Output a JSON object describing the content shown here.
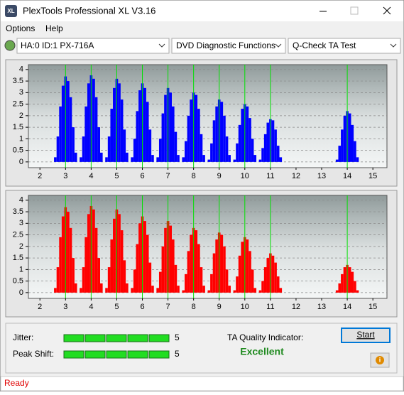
{
  "window": {
    "title": "PlexTools Professional XL V3.16"
  },
  "menu": [
    "Options",
    "Help"
  ],
  "toolbar": {
    "drive": "HA:0 ID:1  PX-716A",
    "function": "DVD Diagnostic Functions",
    "test": "Q-Check TA Test"
  },
  "chart_data": [
    {
      "type": "bar",
      "color": "#0000ff",
      "grid": true,
      "x": [
        2.6,
        2.7,
        2.8,
        2.9,
        3,
        3.1,
        3.2,
        3.3,
        3.4,
        3.6,
        3.7,
        3.8,
        3.9,
        4,
        4.1,
        4.2,
        4.3,
        4.4,
        4.6,
        4.7,
        4.8,
        4.9,
        5,
        5.1,
        5.2,
        5.3,
        5.4,
        5.6,
        5.7,
        5.8,
        5.9,
        6,
        6.1,
        6.2,
        6.3,
        6.4,
        6.6,
        6.7,
        6.8,
        6.9,
        7,
        7.1,
        7.2,
        7.3,
        7.4,
        7.6,
        7.7,
        7.8,
        7.9,
        8,
        8.1,
        8.2,
        8.3,
        8.4,
        8.6,
        8.7,
        8.8,
        8.9,
        9,
        9.1,
        9.2,
        9.3,
        9.4,
        9.6,
        9.7,
        9.8,
        9.9,
        10,
        10.1,
        10.2,
        10.3,
        10.4,
        10.6,
        10.7,
        10.8,
        10.9,
        11,
        11.1,
        11.2,
        11.3,
        11.4,
        13.6,
        13.7,
        13.8,
        13.9,
        14,
        14.1,
        14.2,
        14.3,
        14.4
      ],
      "values": [
        0.2,
        1.1,
        2.4,
        3.3,
        3.7,
        3.5,
        2.8,
        1.5,
        0.4,
        0.2,
        1.1,
        2.4,
        3.4,
        3.75,
        3.6,
        2.8,
        1.5,
        0.4,
        0.2,
        1.1,
        2.3,
        3.2,
        3.6,
        3.4,
        2.7,
        1.4,
        0.4,
        0.2,
        1.0,
        2.2,
        3.1,
        3.4,
        3.2,
        2.6,
        1.4,
        0.3,
        0.2,
        1.0,
        2.1,
        2.9,
        3.2,
        3.0,
        2.4,
        1.3,
        0.3,
        0.2,
        0.9,
        2.0,
        2.7,
        3.0,
        2.9,
        2.3,
        1.2,
        0.3,
        0.1,
        0.8,
        1.8,
        2.4,
        2.7,
        2.6,
        2.0,
        1.1,
        0.3,
        0.1,
        0.8,
        1.6,
        2.3,
        2.5,
        2.4,
        1.9,
        1.0,
        0.3,
        0.1,
        0.6,
        1.2,
        1.7,
        1.85,
        1.8,
        1.4,
        0.7,
        0.2,
        0.1,
        0.7,
        1.4,
        2.0,
        2.2,
        2.1,
        1.6,
        0.9,
        0.2
      ],
      "xlim": [
        1.55,
        15.55
      ],
      "ylim": [
        -0.25,
        4.21
      ],
      "xticks": [
        2,
        3,
        4,
        5,
        6,
        7,
        8,
        9,
        10,
        11,
        12,
        13,
        14,
        15
      ],
      "yticks": [
        0,
        0.5,
        1,
        1.5,
        2,
        2.5,
        3,
        3.5,
        4
      ],
      "reference_lines": [
        3,
        4,
        5,
        6,
        7,
        8,
        9,
        10,
        11,
        14
      ],
      "reference_color": "#00e000"
    },
    {
      "type": "bar",
      "color": "#ff0000",
      "grid": true,
      "x": [
        2.6,
        2.7,
        2.8,
        2.9,
        3,
        3.1,
        3.2,
        3.3,
        3.4,
        3.6,
        3.7,
        3.8,
        3.9,
        4,
        4.1,
        4.2,
        4.3,
        4.4,
        4.6,
        4.7,
        4.8,
        4.9,
        5,
        5.1,
        5.2,
        5.3,
        5.4,
        5.6,
        5.7,
        5.8,
        5.9,
        6,
        6.1,
        6.2,
        6.3,
        6.4,
        6.6,
        6.7,
        6.8,
        6.9,
        7,
        7.1,
        7.2,
        7.3,
        7.4,
        7.6,
        7.7,
        7.8,
        7.9,
        8,
        8.1,
        8.2,
        8.3,
        8.4,
        8.6,
        8.7,
        8.8,
        8.9,
        9,
        9.1,
        9.2,
        9.3,
        9.4,
        9.6,
        9.7,
        9.8,
        9.9,
        10,
        10.1,
        10.2,
        10.3,
        10.4,
        10.6,
        10.7,
        10.8,
        10.9,
        11,
        11.1,
        11.2,
        11.3,
        11.4,
        13.6,
        13.7,
        13.8,
        13.9,
        14,
        14.1,
        14.2,
        14.3,
        14.4
      ],
      "values": [
        0.2,
        1.1,
        2.4,
        3.3,
        3.7,
        3.5,
        2.8,
        1.5,
        0.4,
        0.2,
        1.1,
        2.4,
        3.4,
        3.75,
        3.6,
        2.8,
        1.5,
        0.4,
        0.2,
        1.1,
        2.3,
        3.2,
        3.6,
        3.4,
        2.7,
        1.4,
        0.4,
        0.2,
        1.0,
        2.1,
        3.0,
        3.3,
        3.1,
        2.5,
        1.3,
        0.3,
        0.2,
        0.9,
        2.0,
        2.8,
        3.1,
        2.9,
        2.3,
        1.2,
        0.3,
        0.1,
        0.8,
        1.8,
        2.5,
        2.8,
        2.7,
        2.1,
        1.1,
        0.3,
        0.1,
        0.8,
        1.7,
        2.3,
        2.6,
        2.5,
        2.0,
        1.0,
        0.3,
        0.1,
        0.7,
        1.6,
        2.2,
        2.4,
        2.3,
        1.8,
        1.0,
        0.2,
        0.1,
        0.5,
        1.1,
        1.5,
        1.7,
        1.6,
        1.3,
        0.7,
        0.2,
        0.1,
        0.4,
        0.8,
        1.1,
        1.2,
        1.1,
        0.9,
        0.5,
        0.1
      ],
      "xlim": [
        1.55,
        15.55
      ],
      "ylim": [
        -0.25,
        4.21
      ],
      "xticks": [
        2,
        3,
        4,
        5,
        6,
        7,
        8,
        9,
        10,
        11,
        12,
        13,
        14,
        15
      ],
      "yticks": [
        0,
        0.5,
        1,
        1.5,
        2,
        2.5,
        3,
        3.5,
        4
      ],
      "reference_lines": [
        3,
        4,
        5,
        6,
        7,
        8,
        9,
        10,
        11,
        14
      ],
      "reference_color": "#00e000"
    }
  ],
  "quality": {
    "jitter_label": "Jitter:",
    "jitter": 5,
    "peak_shift_label": "Peak Shift:",
    "peak_shift": 5,
    "ta_label": "TA Quality Indicator:",
    "ta_value": "Excellent",
    "start": "Start"
  },
  "status": "Ready"
}
